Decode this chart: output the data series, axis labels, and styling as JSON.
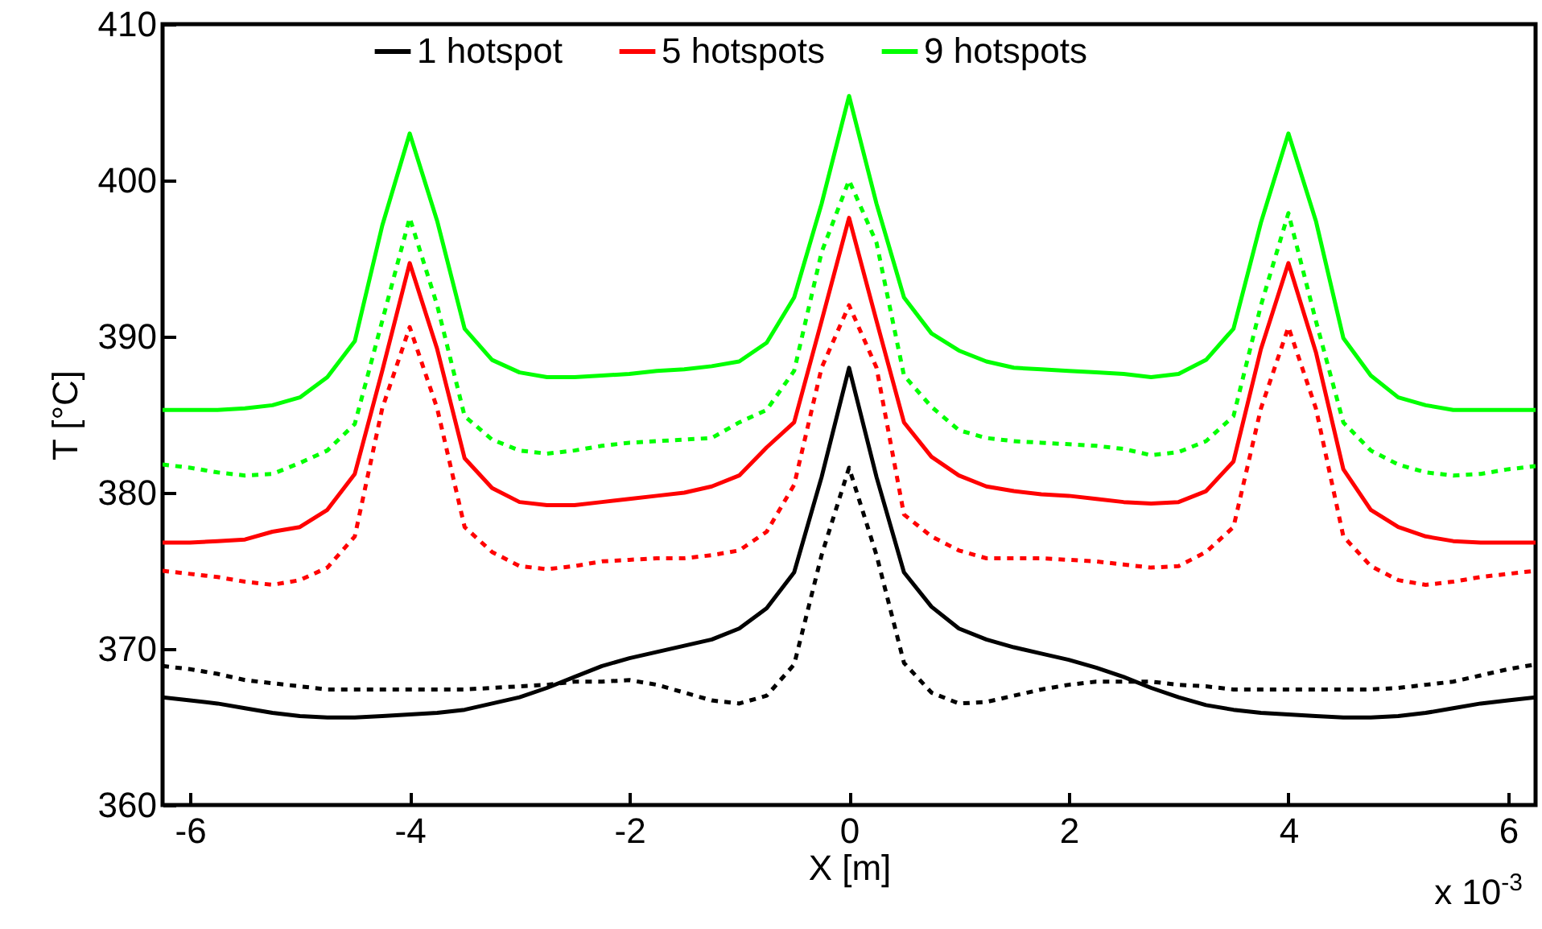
{
  "chart_data": {
    "type": "line",
    "xlabel": "X [m]",
    "ylabel": "T [°C]",
    "xlim": [
      -6.25,
      6.25
    ],
    "ylim": [
      360,
      410
    ],
    "xticks": [
      -6,
      -4,
      -2,
      0,
      2,
      4,
      6
    ],
    "yticks": [
      360,
      370,
      380,
      390,
      400,
      410
    ],
    "grid": false,
    "legend": "top",
    "marker": "none",
    "annotations": [
      "x 10$^{-3}$"
    ],
    "x": [
      -6.25,
      -6,
      -5.75,
      -5.5,
      -5.25,
      -5,
      -4.75,
      -4.5,
      -4.25,
      -4,
      -3.75,
      -3.5,
      -3.25,
      -3,
      -2.75,
      -2.5,
      -2.25,
      -2,
      -1.75,
      -1.5,
      -1.25,
      -1,
      -0.75,
      -0.5,
      -0.25,
      0,
      0.25,
      0.5,
      0.75,
      1,
      1.25,
      1.5,
      1.75,
      2,
      2.25,
      2.5,
      2.75,
      3,
      3.25,
      3.5,
      3.75,
      4,
      4.25,
      4.5,
      4.75,
      5,
      5.25,
      5.5,
      5.75,
      6,
      6.25
    ],
    "series": [
      {
        "name": "1 hotspot",
        "color": "#000000",
        "line_style": "solid",
        "values": [
          366.9,
          366.7,
          366.5,
          366.2,
          365.9,
          365.7,
          365.6,
          365.6,
          365.7,
          365.8,
          365.9,
          366.1,
          366.5,
          366.9,
          367.5,
          368.2,
          368.9,
          369.4,
          369.8,
          370.2,
          370.6,
          371.3,
          372.6,
          374.9,
          381.0,
          388.0,
          381.0,
          374.9,
          372.7,
          371.3,
          370.6,
          370.1,
          369.7,
          369.3,
          368.8,
          368.2,
          367.5,
          366.9,
          366.4,
          366.1,
          365.9,
          365.8,
          365.7,
          365.6,
          365.6,
          365.7,
          365.9,
          366.2,
          366.5,
          366.7,
          366.9
        ]
      },
      {
        "name": "5 hotspots",
        "color": "#ff0000",
        "line_style": "solid",
        "values": [
          376.8,
          376.8,
          376.9,
          377.0,
          377.5,
          377.8,
          378.9,
          381.2,
          387.8,
          394.7,
          389.2,
          382.2,
          380.3,
          379.4,
          379.2,
          379.2,
          379.4,
          379.6,
          379.8,
          380.0,
          380.4,
          381.1,
          382.9,
          384.5,
          391.0,
          397.6,
          391.0,
          384.5,
          382.3,
          381.1,
          380.4,
          380.1,
          379.9,
          379.8,
          379.6,
          379.4,
          379.3,
          379.4,
          380.1,
          382.0,
          389.2,
          394.7,
          389.0,
          381.5,
          378.9,
          377.8,
          377.2,
          376.9,
          376.8,
          376.8,
          376.8
        ]
      },
      {
        "name": "9 hotspots",
        "color": "#00ff00",
        "line_style": "solid",
        "values": [
          385.3,
          385.3,
          385.3,
          385.4,
          385.6,
          386.1,
          387.4,
          389.7,
          397.1,
          403.0,
          397.4,
          390.5,
          388.5,
          387.7,
          387.4,
          387.4,
          387.5,
          387.6,
          387.8,
          387.9,
          388.1,
          388.4,
          389.6,
          392.5,
          398.5,
          405.4,
          398.5,
          392.5,
          390.2,
          389.1,
          388.4,
          388.0,
          387.9,
          387.8,
          387.7,
          387.6,
          387.4,
          387.6,
          388.5,
          390.5,
          397.3,
          403.0,
          397.4,
          389.9,
          387.5,
          386.1,
          385.6,
          385.3,
          385.3,
          385.3,
          385.3
        ]
      },
      {
        "color": "#000000",
        "line_style": "dotted",
        "values": [
          368.9,
          368.7,
          368.4,
          368.0,
          367.8,
          367.6,
          367.4,
          367.4,
          367.4,
          367.4,
          367.4,
          367.4,
          367.5,
          367.6,
          367.7,
          367.9,
          367.9,
          368.0,
          367.7,
          367.2,
          366.7,
          366.5,
          367.0,
          369.0,
          376.0,
          381.6,
          376.0,
          369.1,
          367.2,
          366.5,
          366.6,
          367.0,
          367.4,
          367.7,
          367.9,
          367.9,
          367.9,
          367.7,
          367.6,
          367.4,
          367.4,
          367.4,
          367.4,
          367.4,
          367.4,
          367.5,
          367.7,
          367.9,
          368.3,
          368.7,
          369.0
        ]
      },
      {
        "color": "#ff0000",
        "line_style": "dotted",
        "values": [
          375.0,
          374.8,
          374.6,
          374.3,
          374.1,
          374.4,
          375.2,
          377.2,
          385.4,
          390.6,
          385.4,
          377.8,
          376.2,
          375.3,
          375.1,
          375.3,
          375.6,
          375.7,
          375.8,
          375.8,
          376.0,
          376.3,
          377.5,
          380.5,
          388.0,
          392.0,
          388.0,
          378.6,
          377.2,
          376.3,
          375.8,
          375.8,
          375.8,
          375.7,
          375.6,
          375.4,
          375.2,
          375.3,
          376.2,
          377.8,
          385.4,
          390.6,
          385.4,
          377.2,
          375.3,
          374.4,
          374.1,
          374.3,
          374.6,
          374.8,
          375.0
        ]
      },
      {
        "color": "#00ff00",
        "line_style": "dotted",
        "values": [
          381.8,
          381.6,
          381.3,
          381.1,
          381.2,
          381.9,
          382.7,
          384.4,
          391.0,
          397.6,
          392.0,
          384.9,
          383.4,
          382.7,
          382.5,
          382.7,
          383.0,
          383.2,
          383.3,
          383.4,
          383.5,
          384.5,
          385.3,
          387.8,
          395.4,
          400.0,
          396.0,
          387.5,
          385.5,
          384.0,
          383.5,
          383.3,
          383.2,
          383.1,
          383.0,
          382.8,
          382.4,
          382.6,
          383.3,
          384.9,
          392.0,
          397.9,
          391.0,
          384.5,
          382.7,
          381.8,
          381.3,
          381.1,
          381.2,
          381.5,
          381.7
        ]
      }
    ]
  }
}
